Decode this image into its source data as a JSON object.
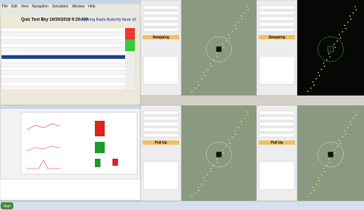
{
  "window": {
    "menu": [
      "File",
      "Edit",
      "View",
      "Navigation",
      "Simulation",
      "Window",
      "Help"
    ]
  },
  "header": {
    "title": "Quiz Test 1",
    "time": "Sky 10/30/2018 9:20 AM",
    "status": "Acquiring Radio Butterfly Node 1X"
  },
  "panels": [
    {
      "mode": "Swapping"
    },
    {
      "mode": "Swapping"
    },
    {
      "mode": "Pull Up"
    },
    {
      "mode": "Pull Up"
    }
  ],
  "taskbar": {
    "start": "Start"
  }
}
